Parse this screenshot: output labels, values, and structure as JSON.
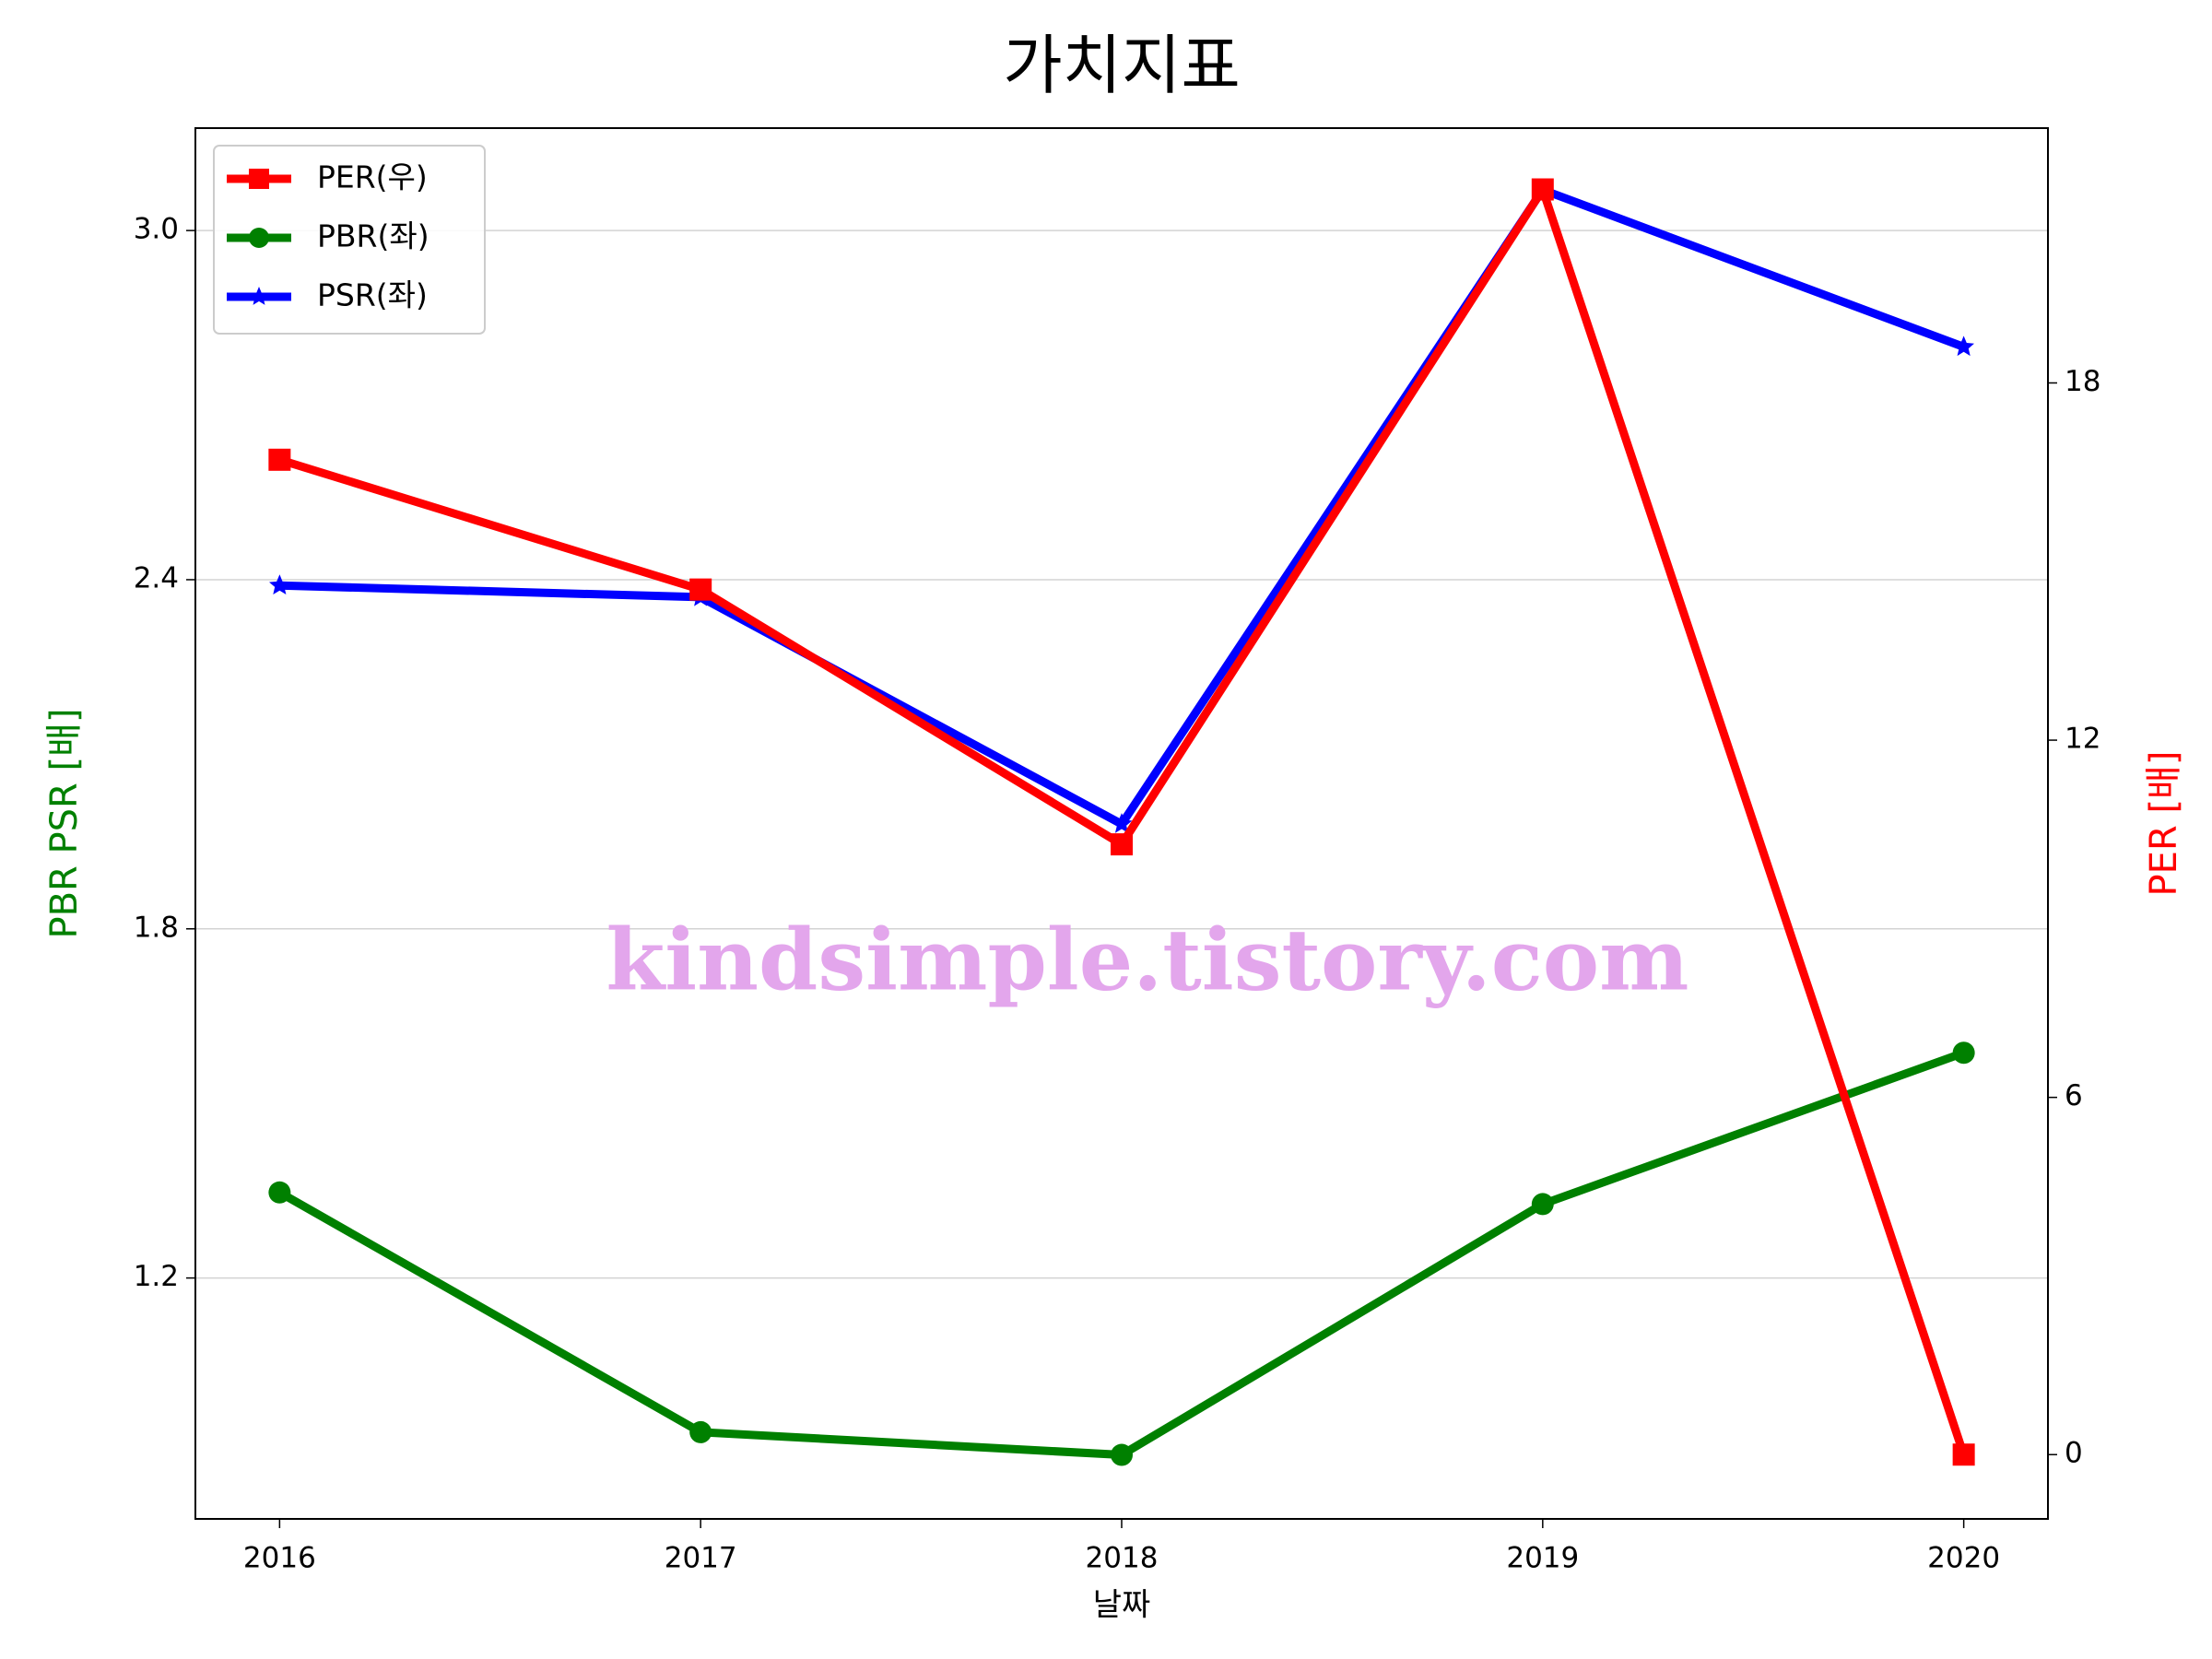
{
  "chart_data": {
    "type": "line",
    "title": "가치지표",
    "xlabel": "날짜",
    "ylabel": "PBR PSR [배]",
    "y2label": "PER [배]",
    "watermark": "kindsimple.tistory.com",
    "x": [
      2016,
      2017,
      2018,
      2019,
      2020
    ],
    "xlim": [
      2015.8,
      2020.2
    ],
    "xticks": [
      2016,
      2017,
      2018,
      2019,
      2020
    ],
    "ylim": [
      0.786,
      3.176
    ],
    "yticks": [
      1.2,
      1.8,
      2.4,
      {
        "value": 3,
        "label": "3.0"
      }
    ],
    "y2lim": [
      -1.08,
      22.28
    ],
    "y2ticks": [
      0,
      6,
      12,
      18
    ],
    "ylabel_color": "green",
    "y2label_color": "red",
    "grid": true,
    "legend": "upper left",
    "series": [
      {
        "name": "PER(우)",
        "color": "red",
        "marker": "square",
        "axis": "y2",
        "values": [
          16.71,
          14.53,
          10.25,
          21.25,
          0
        ]
      },
      {
        "name": "PBR(좌)",
        "color": "green",
        "marker": "circle",
        "values": [
          1.347,
          0.935,
          0.896,
          1.327,
          1.587
        ]
      },
      {
        "name": "PSR(좌)",
        "color": "blue",
        "marker": "star",
        "values": [
          2.39,
          2.37,
          1.98,
          3.07,
          2.8
        ]
      }
    ]
  }
}
